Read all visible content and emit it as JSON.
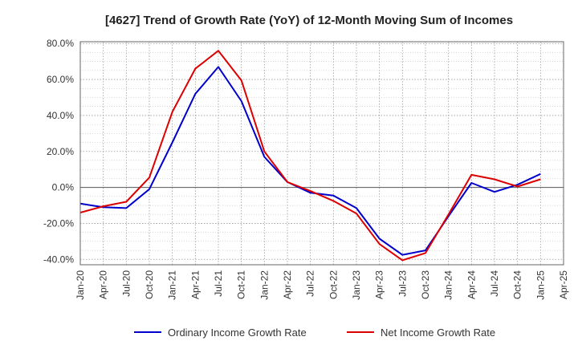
{
  "chart_data": {
    "type": "line",
    "title": "[4627]  Trend of Growth Rate (YoY) of 12-Month Moving Sum of Incomes",
    "xlabel": "",
    "ylabel": "",
    "x_tick_labels": [
      "Jan-20",
      "Apr-20",
      "Jul-20",
      "Oct-20",
      "Jan-21",
      "Apr-21",
      "Jul-21",
      "Oct-21",
      "Jan-22",
      "Apr-22",
      "Jul-22",
      "Oct-22",
      "Jan-23",
      "Apr-23",
      "Jul-23",
      "Oct-23",
      "Jan-24",
      "Apr-24",
      "Jul-24",
      "Oct-24",
      "Jan-25",
      "Apr-25"
    ],
    "y_tick_labels": [
      "80.0%",
      "60.0%",
      "40.0%",
      "20.0%",
      "0.0%",
      "-20.0%",
      "-40.0%"
    ],
    "y_ticks": [
      80,
      60,
      40,
      20,
      0,
      -20,
      -40
    ],
    "ylim": [
      -43,
      81
    ],
    "grid": true,
    "legend_position": "bottom",
    "x": [
      "Jan-20",
      "Apr-20",
      "Jul-20",
      "Oct-20",
      "Jan-21",
      "Apr-21",
      "Jul-21",
      "Oct-21",
      "Jan-22",
      "Apr-22",
      "Jul-22",
      "Oct-22",
      "Jan-23",
      "Apr-23",
      "Jul-23",
      "Oct-23",
      "Jan-24",
      "Apr-24",
      "Jul-24",
      "Oct-24",
      "Jan-25"
    ],
    "series": [
      {
        "name": "Ordinary Income Growth Rate",
        "color": "#0000cc",
        "values": [
          -9,
          -11,
          -11.5,
          -1,
          25,
          52,
          67,
          48,
          17,
          3,
          -3,
          -4.5,
          -11.5,
          -28.5,
          -37.5,
          -35,
          -16,
          2.5,
          -2.5,
          1.5,
          7.5
        ]
      },
      {
        "name": "Net Income Growth Rate",
        "color": "#dd0000",
        "values": [
          -14,
          -10.5,
          -8,
          5.5,
          42,
          66,
          76,
          59.5,
          20,
          3,
          -2,
          -7.5,
          -14.5,
          -31.5,
          -40.5,
          -36.5,
          -15,
          7,
          4.5,
          0.5,
          4.5
        ]
      }
    ]
  }
}
